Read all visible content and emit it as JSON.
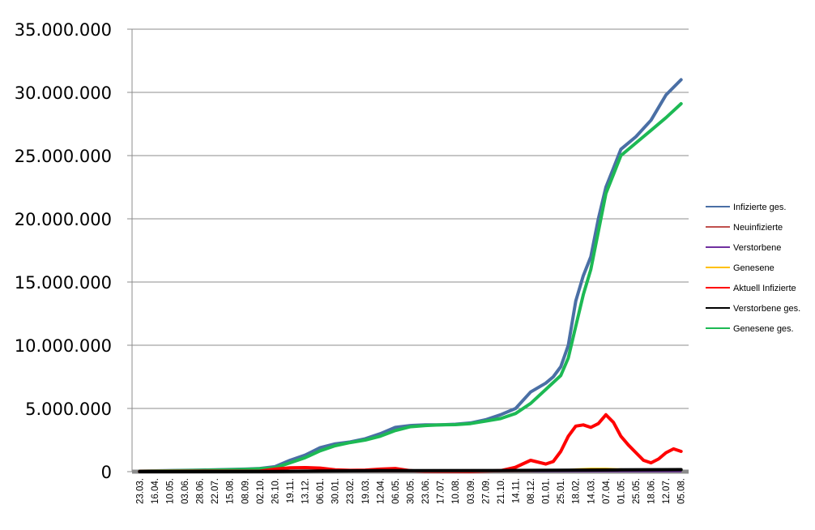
{
  "chart_data": {
    "type": "line",
    "title": "",
    "xlabel": "",
    "ylabel": "",
    "ylim": [
      0,
      35000000
    ],
    "y_ticks": [
      0,
      5000000,
      10000000,
      15000000,
      20000000,
      25000000,
      30000000,
      35000000
    ],
    "y_tick_labels": [
      "0",
      "5.000.000",
      "10.000.000",
      "15.000.000",
      "20.000.000",
      "25.000.000",
      "30.000.000",
      "35.000.000"
    ],
    "categories": [
      "23.03.",
      "16.04.",
      "10.05.",
      "03.06.",
      "28.06.",
      "22.07.",
      "15.08.",
      "08.09.",
      "02.10.",
      "26.10.",
      "19.11.",
      "13.12.",
      "06.01.",
      "30.01.",
      "23.02.",
      "19.03.",
      "12.04.",
      "06.05.",
      "30.05.",
      "23.06.",
      "17.07.",
      "10.08.",
      "03.09.",
      "27.09.",
      "21.10.",
      "14.11.",
      "08.12.",
      "01.01.",
      "25.01.",
      "18.02.",
      "14.03.",
      "07.04.",
      "01.05.",
      "25.05.",
      "18.06.",
      "12.07.",
      "05.08."
    ],
    "grid": "horizontal",
    "legend_position": "right",
    "series": [
      {
        "name": "Infizierte ges.",
        "color": "#4a6fa5",
        "width": 4,
        "points": [
          [
            0,
            50000
          ],
          [
            4,
            120000
          ],
          [
            7,
            200000
          ],
          [
            8,
            250000
          ],
          [
            9,
            400000
          ],
          [
            10,
            900000
          ],
          [
            11,
            1300000
          ],
          [
            12,
            1900000
          ],
          [
            13,
            2200000
          ],
          [
            14,
            2350000
          ],
          [
            15,
            2600000
          ],
          [
            16,
            3000000
          ],
          [
            17,
            3500000
          ],
          [
            18,
            3650000
          ],
          [
            19,
            3700000
          ],
          [
            20,
            3700000
          ],
          [
            21,
            3750000
          ],
          [
            22,
            3850000
          ],
          [
            23,
            4100000
          ],
          [
            24,
            4500000
          ],
          [
            25,
            5000000
          ],
          [
            26,
            6300000
          ],
          [
            27,
            7000000
          ],
          [
            27.5,
            7500000
          ],
          [
            28,
            8300000
          ],
          [
            28.5,
            10000000
          ],
          [
            29,
            13500000
          ],
          [
            29.5,
            15500000
          ],
          [
            30,
            17000000
          ],
          [
            30.5,
            20000000
          ],
          [
            31,
            22500000
          ],
          [
            31.5,
            24000000
          ],
          [
            32,
            25500000
          ],
          [
            33,
            26500000
          ],
          [
            34,
            27800000
          ],
          [
            35,
            29800000
          ],
          [
            36,
            31000000
          ]
        ]
      },
      {
        "name": "Neuinfizierte",
        "color": "#c0504d",
        "width": 1.5,
        "points": [
          [
            0,
            10000
          ],
          [
            10,
            20000
          ],
          [
            20,
            15000
          ],
          [
            28,
            40000
          ],
          [
            30,
            60000
          ],
          [
            32,
            80000
          ],
          [
            34,
            40000
          ],
          [
            36,
            60000
          ]
        ]
      },
      {
        "name": "Verstorbene",
        "color": "#7030a0",
        "width": 1.5,
        "points": [
          [
            0,
            0
          ],
          [
            36,
            2000
          ]
        ]
      },
      {
        "name": "Genesene",
        "color": "#ffc000",
        "width": 2,
        "points": [
          [
            0,
            5000
          ],
          [
            26,
            20000
          ],
          [
            28,
            100000
          ],
          [
            29,
            200000
          ],
          [
            30,
            250000
          ],
          [
            31,
            250000
          ],
          [
            32,
            200000
          ],
          [
            32.5,
            180000
          ]
        ]
      },
      {
        "name": "Aktuell Infizierte",
        "color": "#ff0000",
        "width": 4,
        "points": [
          [
            0,
            20000
          ],
          [
            8,
            40000
          ],
          [
            9,
            200000
          ],
          [
            10,
            300000
          ],
          [
            11,
            320000
          ],
          [
            12,
            280000
          ],
          [
            13,
            150000
          ],
          [
            14,
            100000
          ],
          [
            15,
            120000
          ],
          [
            16,
            200000
          ],
          [
            17,
            250000
          ],
          [
            18,
            80000
          ],
          [
            19,
            30000
          ],
          [
            22,
            20000
          ],
          [
            24,
            80000
          ],
          [
            25,
            350000
          ],
          [
            26,
            900000
          ],
          [
            27,
            600000
          ],
          [
            27.5,
            800000
          ],
          [
            28,
            1600000
          ],
          [
            28.5,
            2800000
          ],
          [
            29,
            3600000
          ],
          [
            29.5,
            3700000
          ],
          [
            30,
            3500000
          ],
          [
            30.5,
            3800000
          ],
          [
            31,
            4500000
          ],
          [
            31.5,
            3900000
          ],
          [
            32,
            2800000
          ],
          [
            32.5,
            2100000
          ],
          [
            33,
            1500000
          ],
          [
            33.5,
            900000
          ],
          [
            34,
            700000
          ],
          [
            34.5,
            1000000
          ],
          [
            35,
            1500000
          ],
          [
            35.5,
            1800000
          ],
          [
            36,
            1600000
          ]
        ]
      },
      {
        "name": "Verstorbene ges.",
        "color": "#000000",
        "width": 4,
        "points": [
          [
            0,
            2000
          ],
          [
            9,
            15000
          ],
          [
            12,
            50000
          ],
          [
            16,
            80000
          ],
          [
            24,
            90000
          ],
          [
            28,
            110000
          ],
          [
            32,
            140000
          ],
          [
            36,
            160000
          ]
        ]
      },
      {
        "name": "Genesene ges.",
        "color": "#1db954",
        "width": 4,
        "points": [
          [
            0,
            30000
          ],
          [
            4,
            100000
          ],
          [
            7,
            180000
          ],
          [
            8,
            230000
          ],
          [
            9,
            300000
          ],
          [
            10,
            700000
          ],
          [
            11,
            1100000
          ],
          [
            12,
            1650000
          ],
          [
            13,
            2050000
          ],
          [
            14,
            2300000
          ],
          [
            15,
            2500000
          ],
          [
            16,
            2800000
          ],
          [
            17,
            3250000
          ],
          [
            18,
            3550000
          ],
          [
            19,
            3650000
          ],
          [
            20,
            3700000
          ],
          [
            21,
            3720000
          ],
          [
            22,
            3800000
          ],
          [
            23,
            4000000
          ],
          [
            24,
            4200000
          ],
          [
            25,
            4600000
          ],
          [
            26,
            5400000
          ],
          [
            27,
            6500000
          ],
          [
            28,
            7600000
          ],
          [
            28.5,
            9000000
          ],
          [
            29,
            11500000
          ],
          [
            29.5,
            14000000
          ],
          [
            30,
            16000000
          ],
          [
            30.5,
            19000000
          ],
          [
            31,
            22000000
          ],
          [
            31.5,
            23500000
          ],
          [
            32,
            25000000
          ],
          [
            33,
            26000000
          ],
          [
            34,
            27000000
          ],
          [
            35,
            28000000
          ],
          [
            36,
            29100000
          ]
        ]
      }
    ]
  }
}
